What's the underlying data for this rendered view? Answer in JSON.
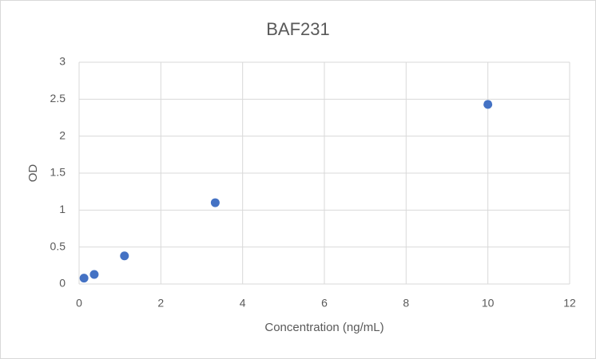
{
  "chart_data": {
    "type": "scatter",
    "title": "BAF231",
    "x_label": "Concentration (ng/mL)",
    "y_label": "OD",
    "series": [
      {
        "name": "OD",
        "color": "#4472c4",
        "x": [
          0.12,
          0.37,
          1.11,
          3.33,
          10
        ],
        "values": [
          0.08,
          0.13,
          0.38,
          1.1,
          2.43
        ]
      }
    ],
    "xlim": [
      0,
      12
    ],
    "xticks": [
      0,
      2,
      4,
      6,
      8,
      10,
      12
    ],
    "ylim": [
      0,
      3
    ],
    "yticks": [
      0,
      0.5,
      1,
      1.5,
      2,
      2.5,
      3
    ],
    "grid": true
  }
}
